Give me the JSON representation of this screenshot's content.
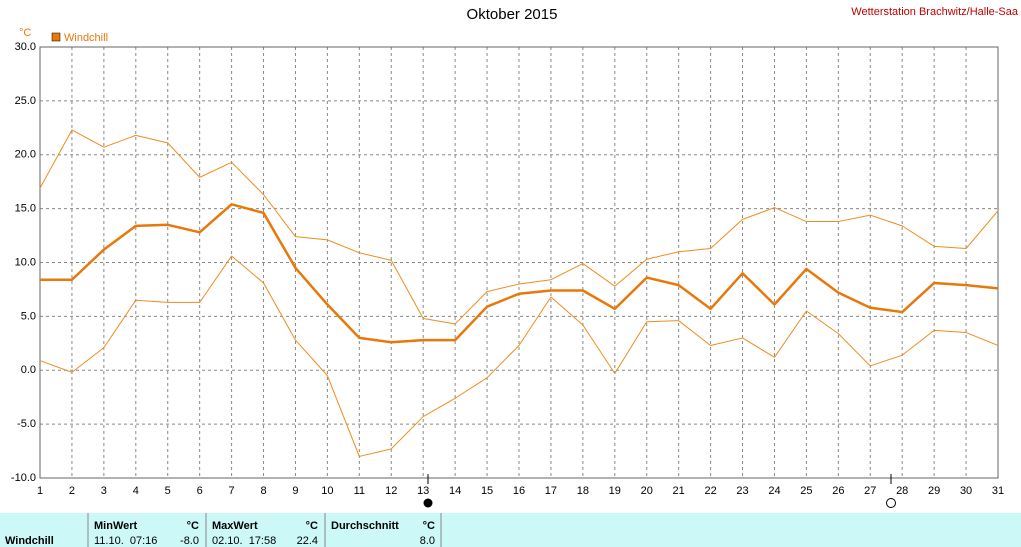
{
  "chart_data": {
    "type": "line",
    "title": "Oktober 2015",
    "unit": "°C",
    "source": "Wetterstation Brachwitz/Halle-Saa",
    "x": [
      1,
      2,
      3,
      4,
      5,
      6,
      7,
      8,
      9,
      10,
      11,
      12,
      13,
      14,
      15,
      16,
      17,
      18,
      19,
      20,
      21,
      22,
      23,
      24,
      25,
      26,
      27,
      28,
      29,
      30,
      31
    ],
    "xlim": [
      1,
      31
    ],
    "xticks": [
      1,
      2,
      3,
      4,
      5,
      6,
      7,
      8,
      9,
      10,
      11,
      12,
      13,
      14,
      15,
      16,
      17,
      18,
      19,
      20,
      21,
      22,
      23,
      24,
      25,
      26,
      27,
      28,
      29,
      30,
      31
    ],
    "ylim": [
      -10,
      30
    ],
    "yticks": [
      {
        "value": -10,
        "label": "-10.0"
      },
      {
        "value": -5,
        "label": "-5.0"
      },
      {
        "value": 0,
        "label": "0.0"
      },
      {
        "value": 5,
        "label": "5.0"
      },
      {
        "value": 10,
        "label": "10.0"
      },
      {
        "value": 15,
        "label": "15.0"
      },
      {
        "value": 20,
        "label": "20.0"
      },
      {
        "value": 25,
        "label": "25.0"
      },
      {
        "value": 30,
        "label": "30.0"
      }
    ],
    "grid": true,
    "series": [
      {
        "name": "Windchill",
        "color": "#e8780a",
        "values": [
          8.4,
          8.4,
          11.2,
          13.4,
          13.5,
          12.8,
          15.4,
          14.6,
          9.5,
          6.1,
          3.0,
          2.6,
          2.8,
          2.8,
          5.9,
          7.1,
          7.4,
          7.4,
          5.7,
          8.6,
          7.9,
          5.7,
          9.0,
          6.1,
          9.4,
          7.2,
          5.8,
          5.4,
          8.1,
          7.9,
          7.6
        ]
      },
      {
        "color": "#f08c1e",
        "values": [
          16.9,
          22.3,
          20.7,
          21.8,
          21.1,
          17.9,
          19.3,
          16.3,
          12.4,
          12.1,
          10.9,
          10.2,
          4.8,
          4.3,
          7.3,
          8.0,
          8.4,
          9.9,
          7.8,
          10.3,
          11.0,
          11.3,
          14.0,
          15.1,
          13.8,
          13.8,
          14.4,
          13.4,
          11.5,
          11.3,
          14.8
        ]
      },
      {
        "color": "#f08c1e",
        "values": [
          0.9,
          -0.2,
          2.1,
          6.5,
          6.3,
          6.3,
          10.6,
          8.1,
          2.8,
          -0.5,
          -8.0,
          -7.3,
          -4.3,
          -2.6,
          -0.7,
          2.3,
          6.8,
          4.2,
          -0.3,
          4.5,
          4.6,
          2.3,
          3.0,
          1.2,
          5.5,
          3.4,
          0.4,
          1.4,
          3.7,
          3.5,
          2.3
        ]
      }
    ]
  },
  "summary": {
    "label": "Windchill",
    "min": {
      "title": "MinWert",
      "unit": "°C",
      "time": "11.10.  07:16",
      "value": "-8.0"
    },
    "max": {
      "title": "MaxWert",
      "unit": "°C",
      "time": "02.10.  17:58",
      "value": "22.4"
    },
    "avg": {
      "title": "Durchschnitt",
      "unit": "°C",
      "value": "8.0"
    }
  }
}
